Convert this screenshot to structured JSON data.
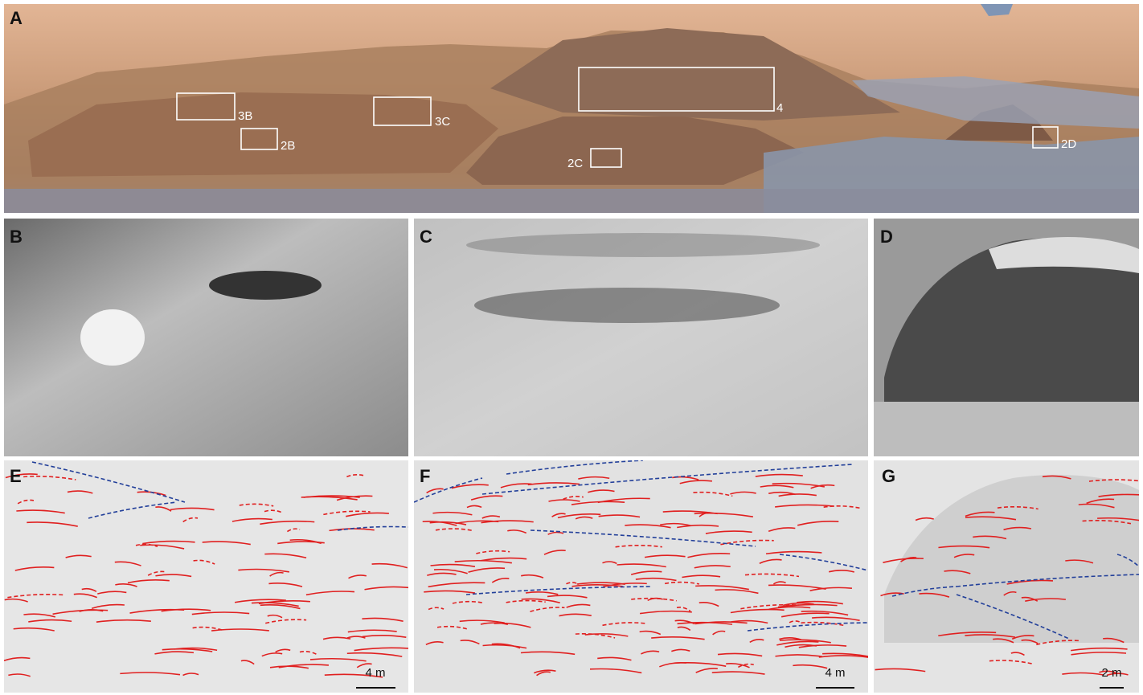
{
  "panels": [
    {
      "label": "A"
    },
    {
      "label": "B"
    },
    {
      "label": "C"
    },
    {
      "label": "D"
    },
    {
      "label": "E"
    },
    {
      "label": "F"
    },
    {
      "label": "G"
    }
  ],
  "boxes": [
    {
      "label": "3B"
    },
    {
      "label": "2B"
    },
    {
      "label": "3C"
    },
    {
      "label": "4"
    },
    {
      "label": "2C"
    },
    {
      "label": "2D"
    }
  ],
  "scale_bars": [
    {
      "label": "4 m"
    },
    {
      "label": "4 m"
    },
    {
      "label": "2 m"
    }
  ]
}
